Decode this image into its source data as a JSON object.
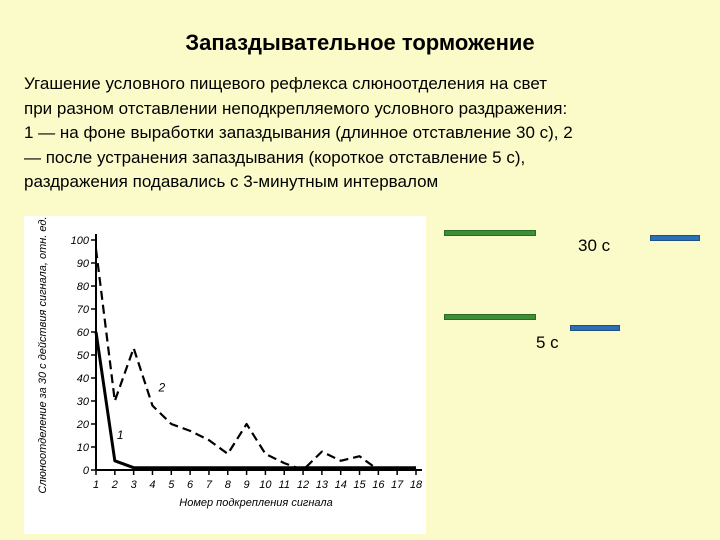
{
  "slide": {
    "title": "Запаздывательное торможение",
    "description_lines": [
      "Угашение условного пищевого рефлекса слюноотделения на свет",
      "при разном отставлении неподкрепляемого условного раздражения:",
      "1 — на фоне выработки запаздывания (длинное отставление 30 с), 2",
      "— после устранения запаздывания (короткое отставление 5 с),",
      "раздражения подавались с 3-минутным интервалом"
    ]
  },
  "timing_diagram": {
    "label_30": "30 с",
    "label_5": "5 с",
    "colors": {
      "stimulus": "#3E8E36",
      "reinforcement": "#2B6FB5"
    }
  },
  "chart_data": {
    "type": "line",
    "xlabel": "Номер подкрепления сигнала",
    "ylabel": "Слюноотделение за 30 с действия сигнала, отн. ед.",
    "x_ticks": [
      1,
      2,
      3,
      4,
      5,
      6,
      7,
      8,
      9,
      10,
      11,
      12,
      13,
      14,
      15,
      16,
      17,
      18
    ],
    "y_ticks": [
      0,
      10,
      20,
      30,
      40,
      50,
      60,
      70,
      80,
      90,
      100
    ],
    "xlim": [
      1,
      18
    ],
    "ylim": [
      0,
      100
    ],
    "series": [
      {
        "name": "1",
        "style": "solid",
        "x": [
          1,
          2,
          3,
          4,
          5,
          6,
          7,
          8,
          9,
          10,
          11,
          12,
          13,
          14,
          15,
          16,
          17,
          18
        ],
        "values": [
          60,
          4,
          1,
          1,
          1,
          1,
          1,
          1,
          1,
          1,
          1,
          1,
          1,
          1,
          1,
          1,
          1,
          1
        ]
      },
      {
        "name": "2",
        "style": "dashed",
        "x": [
          1,
          2,
          3,
          4,
          5,
          6,
          7,
          8,
          9,
          10,
          11,
          12,
          13,
          14,
          15,
          16,
          17,
          18
        ],
        "values": [
          96,
          30,
          53,
          28,
          20,
          17,
          13,
          7,
          20,
          7,
          3,
          0,
          8,
          4,
          6,
          0,
          1,
          0
        ]
      }
    ]
  }
}
